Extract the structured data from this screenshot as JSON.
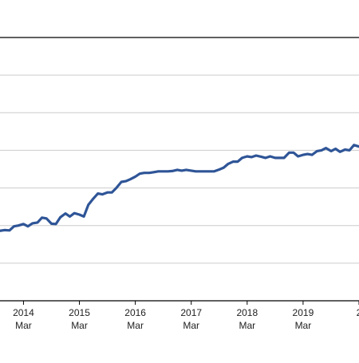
{
  "chart_data": {
    "type": "line",
    "title": "",
    "xlabel": "",
    "ylabel": "",
    "grid": true,
    "line_color": "#2f5597",
    "grid_color": "#cccccc",
    "x_ticks": [
      {
        "year": "2014",
        "month": "Mar",
        "x": 2014.17
      },
      {
        "year": "2015",
        "month": "Mar",
        "x": 2015.17
      },
      {
        "year": "2016",
        "month": "Mar",
        "x": 2016.17
      },
      {
        "year": "2017",
        "month": "Mar",
        "x": 2017.17
      },
      {
        "year": "2018",
        "month": "Mar",
        "x": 2018.17
      },
      {
        "year": "2019",
        "month": "Mar",
        "x": 2019.17
      },
      {
        "year": "2",
        "month": "",
        "x": 2020.17
      }
    ],
    "xlim": [
      2013.75,
      2020.17
    ],
    "ylim": [
      0,
      7
    ],
    "y_gridlines": [
      0,
      1,
      2,
      3,
      4,
      5,
      6,
      7
    ],
    "series": [
      {
        "name": "",
        "points": [
          [
            2013.75,
            1.86
          ],
          [
            2013.83,
            1.88
          ],
          [
            2013.92,
            1.87
          ],
          [
            2014.0,
            1.98
          ],
          [
            2014.08,
            2.0
          ],
          [
            2014.17,
            2.04
          ],
          [
            2014.25,
            1.98
          ],
          [
            2014.33,
            2.06
          ],
          [
            2014.42,
            2.08
          ],
          [
            2014.5,
            2.21
          ],
          [
            2014.58,
            2.19
          ],
          [
            2014.67,
            2.05
          ],
          [
            2014.75,
            2.04
          ],
          [
            2014.83,
            2.22
          ],
          [
            2014.92,
            2.32
          ],
          [
            2015.0,
            2.24
          ],
          [
            2015.08,
            2.33
          ],
          [
            2015.17,
            2.29
          ],
          [
            2015.25,
            2.24
          ],
          [
            2015.33,
            2.55
          ],
          [
            2015.42,
            2.72
          ],
          [
            2015.5,
            2.85
          ],
          [
            2015.58,
            2.83
          ],
          [
            2015.67,
            2.88
          ],
          [
            2015.75,
            2.88
          ],
          [
            2015.83,
            3.0
          ],
          [
            2015.92,
            3.16
          ],
          [
            2016.0,
            3.18
          ],
          [
            2016.08,
            3.23
          ],
          [
            2016.17,
            3.3
          ],
          [
            2016.25,
            3.38
          ],
          [
            2016.33,
            3.4
          ],
          [
            2016.42,
            3.4
          ],
          [
            2016.5,
            3.42
          ],
          [
            2016.58,
            3.44
          ],
          [
            2016.67,
            3.44
          ],
          [
            2016.75,
            3.44
          ],
          [
            2016.83,
            3.45
          ],
          [
            2016.92,
            3.48
          ],
          [
            2017.0,
            3.46
          ],
          [
            2017.08,
            3.48
          ],
          [
            2017.17,
            3.46
          ],
          [
            2017.25,
            3.44
          ],
          [
            2017.33,
            3.44
          ],
          [
            2017.42,
            3.44
          ],
          [
            2017.5,
            3.44
          ],
          [
            2017.58,
            3.44
          ],
          [
            2017.67,
            3.49
          ],
          [
            2017.75,
            3.54
          ],
          [
            2017.83,
            3.64
          ],
          [
            2017.92,
            3.7
          ],
          [
            2018.0,
            3.7
          ],
          [
            2018.08,
            3.8
          ],
          [
            2018.17,
            3.84
          ],
          [
            2018.25,
            3.82
          ],
          [
            2018.33,
            3.86
          ],
          [
            2018.42,
            3.83
          ],
          [
            2018.5,
            3.8
          ],
          [
            2018.58,
            3.84
          ],
          [
            2018.67,
            3.8
          ],
          [
            2018.75,
            3.8
          ],
          [
            2018.83,
            3.8
          ],
          [
            2018.92,
            3.94
          ],
          [
            2019.0,
            3.94
          ],
          [
            2019.08,
            3.84
          ],
          [
            2019.17,
            3.88
          ],
          [
            2019.25,
            3.9
          ],
          [
            2019.33,
            3.88
          ],
          [
            2019.42,
            3.98
          ],
          [
            2019.5,
            4.0
          ],
          [
            2019.58,
            4.06
          ],
          [
            2019.67,
            3.98
          ],
          [
            2019.75,
            4.04
          ],
          [
            2019.83,
            3.96
          ],
          [
            2019.92,
            4.02
          ],
          [
            2020.0,
            4.0
          ],
          [
            2020.08,
            4.14
          ],
          [
            2020.17,
            4.1
          ]
        ]
      }
    ]
  }
}
